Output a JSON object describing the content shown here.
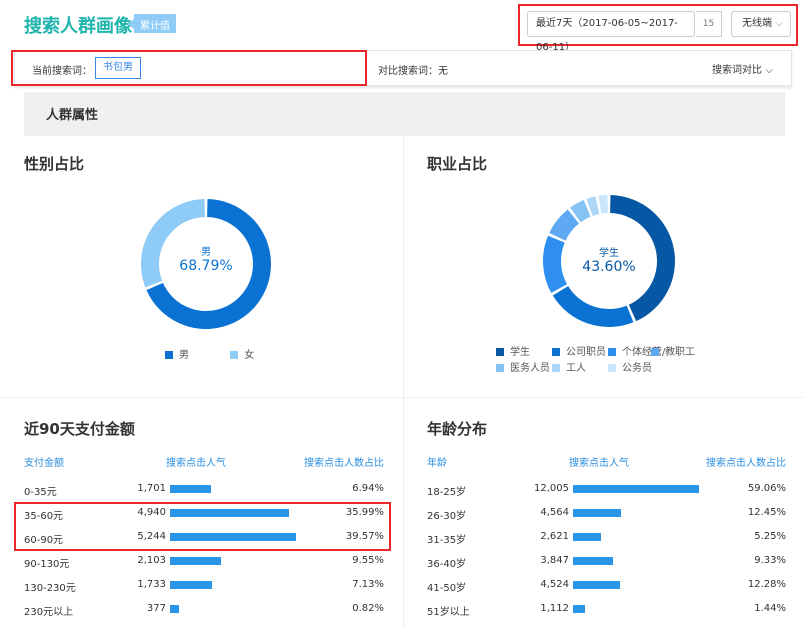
{
  "header": {
    "title": "搜索人群画像",
    "badge": "累计值",
    "date_range": "最近7天（2017-06-05~2017-06-11）",
    "calendar_day": "15",
    "device": "无线端"
  },
  "filter": {
    "current_label": "当前搜索词：",
    "current_value": "书包男",
    "compare_label": "对比搜索词：无",
    "compare_button": "搜索词对比"
  },
  "section_title": "人群属性",
  "gender": {
    "title": "性别占比",
    "center_label": "男",
    "center_value": "68.79%",
    "slices": [
      {
        "name": "男",
        "value": 68.79,
        "color": "#0a72d2"
      },
      {
        "name": "女",
        "value": 31.21,
        "color": "#8ecbf7"
      }
    ]
  },
  "occupation": {
    "title": "职业占比",
    "center_label": "学生",
    "center_value": "43.60%",
    "slices": [
      {
        "name": "学生",
        "value": 43.6,
        "color": "#0658a4"
      },
      {
        "name": "公司职员",
        "value": 23,
        "color": "#0a72d2"
      },
      {
        "name": "个体经营/",
        "value": 15,
        "color": "#2e8ff0"
      },
      {
        "name": "教职工",
        "value": 8,
        "color": "#5ea9f2"
      },
      {
        "name": "医务人员",
        "value": 4.5,
        "color": "#86c3f5"
      },
      {
        "name": "工人",
        "value": 3,
        "color": "#abd6f8"
      },
      {
        "name": "公务员",
        "value": 2.9,
        "color": "#c8e5fb"
      }
    ]
  },
  "payment": {
    "title": "近90天支付金额",
    "headers": [
      "支付金额",
      "搜索点击人气",
      "搜索点击人数占比"
    ],
    "rows": [
      {
        "label": "0-35元",
        "pop": "1,701",
        "popv": 1701,
        "pct": "6.94%"
      },
      {
        "label": "35-60元",
        "pop": "4,940",
        "popv": 4940,
        "pct": "35.99%"
      },
      {
        "label": "60-90元",
        "pop": "5,244",
        "popv": 5244,
        "pct": "39.57%"
      },
      {
        "label": "90-130元",
        "pop": "2,103",
        "popv": 2103,
        "pct": "9.55%"
      },
      {
        "label": "130-230元",
        "pop": "1,733",
        "popv": 1733,
        "pct": "7.13%"
      },
      {
        "label": "230元以上",
        "pop": "377",
        "popv": 377,
        "pct": "0.82%"
      }
    ]
  },
  "age": {
    "title": "年龄分布",
    "headers": [
      "年龄",
      "搜索点击人气",
      "搜索点击人数占比"
    ],
    "rows": [
      {
        "label": "18-25岁",
        "pop": "12,005",
        "popv": 12005,
        "pct": "59.06%"
      },
      {
        "label": "26-30岁",
        "pop": "4,564",
        "popv": 4564,
        "pct": "12.45%"
      },
      {
        "label": "31-35岁",
        "pop": "2,621",
        "popv": 2621,
        "pct": "5.25%"
      },
      {
        "label": "36-40岁",
        "pop": "3,847",
        "popv": 3847,
        "pct": "9.33%"
      },
      {
        "label": "41-50岁",
        "pop": "4,524",
        "popv": 4524,
        "pct": "12.28%"
      },
      {
        "label": "51岁以上",
        "pop": "1,112",
        "popv": 1112,
        "pct": "1.44%"
      }
    ]
  }
}
